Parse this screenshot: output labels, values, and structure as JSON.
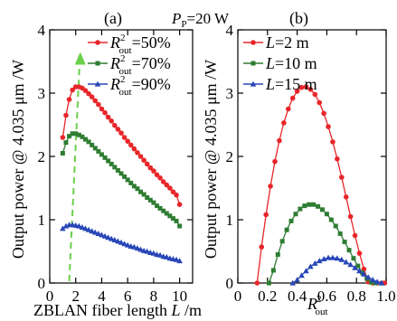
{
  "header": {
    "pump_symbol": "P",
    "pump_sub": "P",
    "pump_value": "=20 W"
  },
  "chart_data": [
    {
      "panel_label": "(a)",
      "type": "line",
      "xlabel_main": "ZBLAN fiber length ",
      "xlabel_var": "L",
      "xlabel_unit": " /m",
      "ylabel": "Output power @ 4.035 μm /W",
      "xlim": [
        0,
        11
      ],
      "ylim": [
        0,
        4
      ],
      "xticks": [
        0,
        2,
        4,
        6,
        8,
        10
      ],
      "yticks": [
        0,
        1,
        2,
        3,
        4
      ],
      "legend_position": "top-right",
      "annotation": "green dashed arrow pointing up near the curve maxima",
      "series": [
        {
          "name_var": "R",
          "name_sup": "2",
          "name_sub": "out",
          "name_val": "=50%",
          "color": "#e8262a",
          "marker": "circle",
          "x": [
            1,
            1.25,
            1.5,
            1.75,
            2,
            2.25,
            2.5,
            2.75,
            3,
            3.25,
            3.5,
            3.75,
            4,
            4.25,
            4.5,
            4.75,
            5,
            5.25,
            5.5,
            5.75,
            6,
            6.25,
            6.5,
            6.75,
            7,
            7.25,
            7.5,
            7.75,
            8,
            8.25,
            8.5,
            8.75,
            9,
            9.25,
            9.5,
            9.75,
            10
          ],
          "y": [
            2.3,
            2.65,
            2.9,
            3.05,
            3.1,
            3.1,
            3.08,
            3.04,
            2.99,
            2.94,
            2.88,
            2.82,
            2.75,
            2.69,
            2.62,
            2.56,
            2.49,
            2.43,
            2.37,
            2.3,
            2.24,
            2.18,
            2.12,
            2.06,
            2.0,
            1.94,
            1.88,
            1.82,
            1.77,
            1.71,
            1.66,
            1.6,
            1.55,
            1.5,
            1.44,
            1.39,
            1.24
          ]
        },
        {
          "name_var": "R",
          "name_sup": "2",
          "name_sub": "out",
          "name_val": "=70%",
          "color": "#2e7d32",
          "marker": "square",
          "x": [
            1,
            1.25,
            1.5,
            1.75,
            2,
            2.25,
            2.5,
            2.75,
            3,
            3.25,
            3.5,
            3.75,
            4,
            4.25,
            4.5,
            4.75,
            5,
            5.25,
            5.5,
            5.75,
            6,
            6.25,
            6.5,
            6.75,
            7,
            7.25,
            7.5,
            7.75,
            8,
            8.25,
            8.5,
            8.75,
            9,
            9.25,
            9.5,
            9.75,
            10
          ],
          "y": [
            2.05,
            2.22,
            2.32,
            2.36,
            2.36,
            2.34,
            2.31,
            2.27,
            2.23,
            2.18,
            2.13,
            2.08,
            2.03,
            1.98,
            1.93,
            1.88,
            1.83,
            1.78,
            1.73,
            1.68,
            1.63,
            1.58,
            1.53,
            1.49,
            1.44,
            1.4,
            1.35,
            1.31,
            1.27,
            1.22,
            1.18,
            1.14,
            1.1,
            1.06,
            1.02,
            0.98,
            0.9
          ]
        },
        {
          "name_var": "R",
          "name_sup": "2",
          "name_sub": "out",
          "name_val": "=90%",
          "color": "#2746b8",
          "marker": "triangle",
          "x": [
            1,
            1.25,
            1.5,
            1.75,
            2,
            2.25,
            2.5,
            2.75,
            3,
            3.25,
            3.5,
            3.75,
            4,
            4.25,
            4.5,
            4.75,
            5,
            5.25,
            5.5,
            5.75,
            6,
            6.25,
            6.5,
            6.75,
            7,
            7.25,
            7.5,
            7.75,
            8,
            8.25,
            8.5,
            8.75,
            9,
            9.25,
            9.5,
            9.75,
            10
          ],
          "y": [
            0.86,
            0.9,
            0.92,
            0.92,
            0.91,
            0.9,
            0.88,
            0.86,
            0.84,
            0.82,
            0.8,
            0.78,
            0.76,
            0.74,
            0.72,
            0.7,
            0.68,
            0.66,
            0.64,
            0.62,
            0.6,
            0.58,
            0.57,
            0.55,
            0.53,
            0.51,
            0.5,
            0.48,
            0.47,
            0.45,
            0.44,
            0.42,
            0.41,
            0.39,
            0.38,
            0.37,
            0.35
          ]
        }
      ]
    },
    {
      "panel_label": "(b)",
      "type": "line",
      "xlabel_var": "R",
      "xlabel_sup": "2",
      "xlabel_sub": "out",
      "ylabel": "Output power @ 4.035 μm /W",
      "xlim": [
        0,
        1
      ],
      "ylim": [
        0,
        4
      ],
      "xticks": [
        0,
        0.2,
        0.4,
        0.6,
        0.8,
        1.0
      ],
      "xtick_labels": [
        "0",
        "0.2",
        "0.4",
        "0.6",
        "0.8",
        "1.0"
      ],
      "yticks": [
        0,
        1,
        2,
        3,
        4
      ],
      "legend_position": "top-left",
      "series": [
        {
          "name_var": "L",
          "name_val": "=2 m",
          "color": "#e8262a",
          "marker": "circle",
          "x": [
            0.13,
            0.16,
            0.19,
            0.22,
            0.25,
            0.28,
            0.31,
            0.34,
            0.37,
            0.4,
            0.43,
            0.46,
            0.49,
            0.52,
            0.55,
            0.58,
            0.61,
            0.64,
            0.67,
            0.7,
            0.73,
            0.76,
            0.79,
            0.82,
            0.85,
            0.88,
            0.91,
            0.94,
            0.97,
            0.99
          ],
          "y": [
            0,
            0.57,
            1.08,
            1.53,
            1.92,
            2.25,
            2.53,
            2.75,
            2.92,
            3.03,
            3.09,
            3.1,
            3.06,
            2.98,
            2.85,
            2.68,
            2.47,
            2.23,
            1.96,
            1.67,
            1.36,
            1.05,
            0.75,
            0.47,
            0.22,
            0.02,
            0,
            0,
            0,
            0
          ]
        },
        {
          "name_var": "L",
          "name_val": "=10 m",
          "color": "#2e7d32",
          "marker": "square",
          "x": [
            0.21,
            0.24,
            0.27,
            0.3,
            0.33,
            0.36,
            0.39,
            0.42,
            0.45,
            0.48,
            0.51,
            0.54,
            0.57,
            0.6,
            0.63,
            0.66,
            0.69,
            0.72,
            0.75,
            0.78,
            0.81,
            0.84,
            0.87,
            0.9,
            0.93
          ],
          "y": [
            0,
            0.2,
            0.45,
            0.66,
            0.84,
            0.98,
            1.09,
            1.17,
            1.22,
            1.24,
            1.24,
            1.21,
            1.16,
            1.09,
            1.0,
            0.9,
            0.78,
            0.65,
            0.52,
            0.39,
            0.27,
            0.16,
            0.07,
            0.01,
            0
          ]
        },
        {
          "name_var": "L",
          "name_val": "=15 m",
          "color": "#2746b8",
          "marker": "triangle",
          "x": [
            0.37,
            0.4,
            0.43,
            0.46,
            0.49,
            0.52,
            0.55,
            0.58,
            0.61,
            0.64,
            0.67,
            0.7,
            0.73,
            0.76,
            0.79,
            0.82,
            0.85,
            0.88,
            0.91,
            0.94,
            0.97
          ],
          "y": [
            0,
            0.05,
            0.12,
            0.19,
            0.26,
            0.31,
            0.35,
            0.38,
            0.4,
            0.4,
            0.39,
            0.37,
            0.33,
            0.29,
            0.24,
            0.19,
            0.14,
            0.09,
            0.05,
            0.02,
            0
          ]
        }
      ]
    }
  ]
}
